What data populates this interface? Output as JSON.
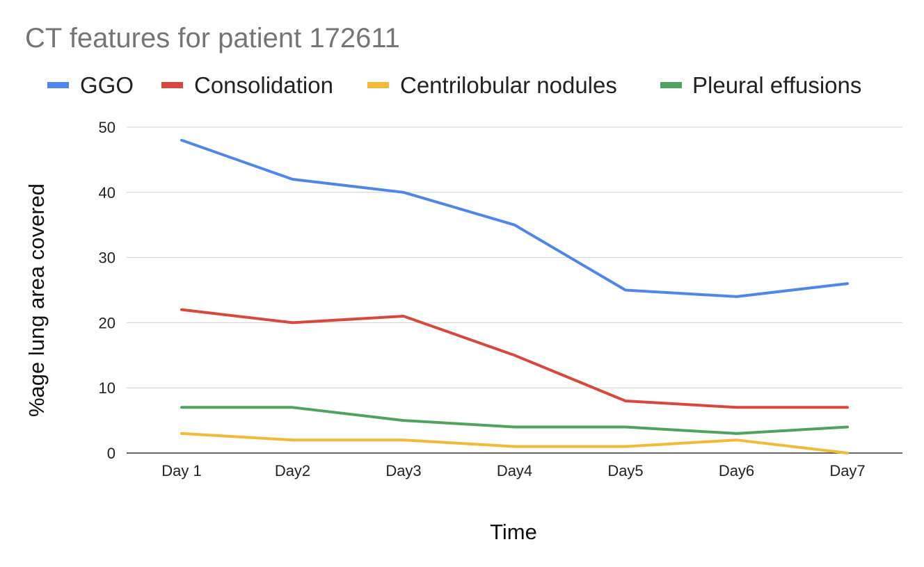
{
  "chart_data": {
    "type": "line",
    "title": "CT features for patient 172611",
    "xlabel": "Time",
    "ylabel": "%age lung area covered",
    "categories": [
      "Day 1",
      "Day2",
      "Day3",
      "Day4",
      "Day5",
      "Day6",
      "Day7"
    ],
    "ylim": [
      0,
      50
    ],
    "yticks": [
      0,
      10,
      20,
      30,
      40,
      50
    ],
    "grid": true,
    "legend_position": "top",
    "series": [
      {
        "name": "GGO",
        "color": "#4f86ec",
        "values": [
          48,
          42,
          40,
          35,
          25,
          24,
          26
        ]
      },
      {
        "name": "Consolidation",
        "color": "#d9493b",
        "values": [
          22,
          20,
          21,
          15,
          8,
          7,
          7
        ]
      },
      {
        "name": "Centrilobular nodules",
        "color": "#f3b937",
        "values": [
          3,
          2,
          2,
          1,
          1,
          2,
          0
        ]
      },
      {
        "name": "Pleural effusions",
        "color": "#4ea35f",
        "values": [
          7,
          7,
          5,
          4,
          4,
          3,
          4
        ]
      }
    ]
  }
}
